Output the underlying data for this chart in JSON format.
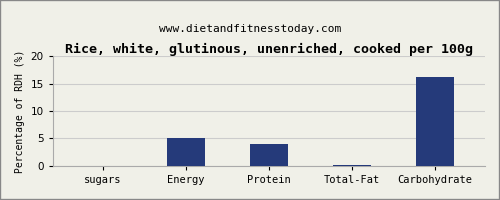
{
  "title": "Rice, white, glutinous, unenriched, cooked per 100g",
  "subtitle": "www.dietandfitnesstoday.com",
  "categories": [
    "sugars",
    "Energy",
    "Protein",
    "Total-Fat",
    "Carbohydrate"
  ],
  "values": [
    0.0,
    5.0,
    4.0,
    0.1,
    16.2
  ],
  "bar_color": "#253a7a",
  "ylabel": "Percentage of RDH (%)",
  "ylim": [
    0,
    20
  ],
  "yticks": [
    0,
    5,
    10,
    15,
    20
  ],
  "background_color": "#f0f0e8",
  "plot_bg_color": "#f0f0e8",
  "grid_color": "#cccccc",
  "border_color": "#888888",
  "title_fontsize": 9.5,
  "subtitle_fontsize": 8,
  "ylabel_fontsize": 7,
  "tick_fontsize": 7.5
}
